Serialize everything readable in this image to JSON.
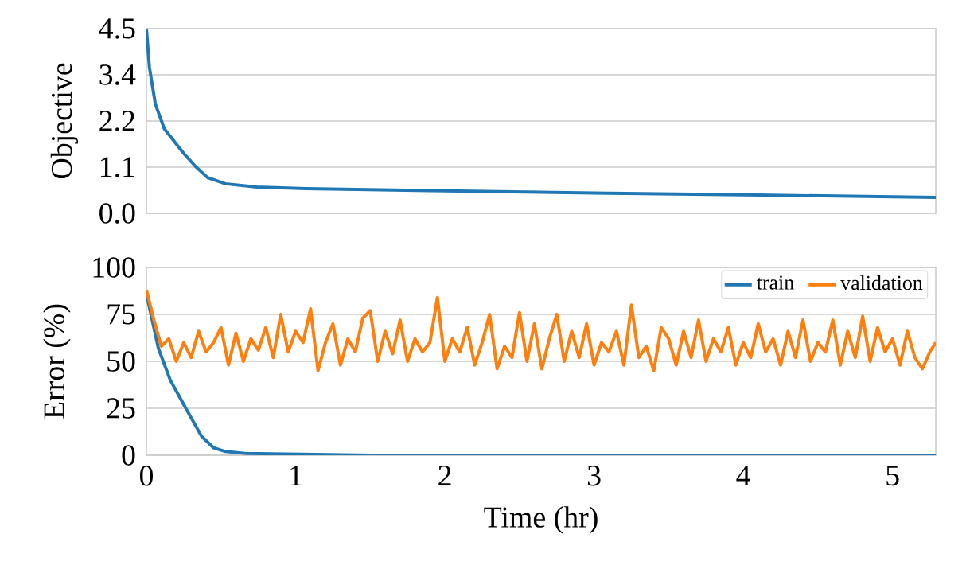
{
  "chart_data": [
    {
      "type": "line",
      "ylabel": "Objective",
      "xlim": [
        0,
        5.29
      ],
      "xticks": [
        0,
        1,
        2,
        3,
        4,
        5
      ],
      "ylim": [
        0,
        4.5
      ],
      "yticks": [
        {
          "value": 0,
          "label": "0.0"
        },
        {
          "value": 1.125,
          "label": "1.1"
        },
        {
          "value": 2.25,
          "label": "2.2"
        },
        {
          "value": 3.375,
          "label": "3.4"
        },
        {
          "value": 4.5,
          "label": "4.5"
        }
      ],
      "grid": "y",
      "tick_labels": "y",
      "series": [
        {
          "color": "#1f77b4",
          "x": [
            0,
            0.02,
            0.06,
            0.12,
            0.25,
            0.33,
            0.41,
            0.53,
            0.74,
            1.07,
            2.0,
            3.1,
            4.0,
            5.29
          ],
          "values": [
            4.5,
            3.56,
            2.66,
            2.06,
            1.46,
            1.14,
            0.87,
            0.72,
            0.64,
            0.6,
            0.55,
            0.49,
            0.45,
            0.39
          ]
        }
      ]
    },
    {
      "type": "line",
      "xlabel": "Time (hr)",
      "ylabel": "Error (%)",
      "xlim": [
        0,
        5.29
      ],
      "xticks": [
        0,
        1,
        2,
        3,
        4,
        5
      ],
      "ylim": [
        0,
        100
      ],
      "yticks": [
        0,
        25,
        50,
        75,
        100
      ],
      "grid": "y",
      "legend": "top right",
      "series": [
        {
          "name": "train",
          "color": "#1f77b4",
          "x": [
            0,
            0.08,
            0.16,
            0.25,
            0.37,
            0.45,
            0.53,
            0.66,
            1.5,
            3.0,
            4.5,
            5.29
          ],
          "values": [
            86,
            57,
            40,
            27,
            10,
            4,
            2,
            1,
            0,
            0,
            0,
            0
          ]
        },
        {
          "name": "validation",
          "color": "#ff7f0e",
          "x": [
            0,
            0.05,
            0.1,
            0.15,
            0.2,
            0.25,
            0.3,
            0.35,
            0.4,
            0.45,
            0.5,
            0.55,
            0.6,
            0.65,
            0.7,
            0.75,
            0.8,
            0.85,
            0.9,
            0.95,
            1.0,
            1.05,
            1.1,
            1.15,
            1.2,
            1.25,
            1.3,
            1.35,
            1.4,
            1.45,
            1.5,
            1.55,
            1.6,
            1.65,
            1.7,
            1.75,
            1.8,
            1.85,
            1.9,
            1.95,
            2.0,
            2.05,
            2.1,
            2.15,
            2.2,
            2.25,
            2.3,
            2.35,
            2.4,
            2.45,
            2.5,
            2.55,
            2.6,
            2.65,
            2.7,
            2.75,
            2.8,
            2.85,
            2.9,
            2.95,
            3.0,
            3.05,
            3.1,
            3.15,
            3.2,
            3.25,
            3.3,
            3.35,
            3.4,
            3.45,
            3.5,
            3.55,
            3.6,
            3.65,
            3.7,
            3.75,
            3.8,
            3.85,
            3.9,
            3.95,
            4.0,
            4.05,
            4.1,
            4.15,
            4.2,
            4.25,
            4.3,
            4.35,
            4.4,
            4.45,
            4.5,
            4.55,
            4.6,
            4.65,
            4.7,
            4.75,
            4.8,
            4.85,
            4.9,
            4.95,
            5.0,
            5.05,
            5.1,
            5.15,
            5.2,
            5.25,
            5.29
          ],
          "values": [
            88,
            72,
            58,
            62,
            50,
            60,
            52,
            66,
            55,
            60,
            68,
            48,
            65,
            50,
            62,
            56,
            68,
            52,
            75,
            55,
            66,
            60,
            78,
            45,
            60,
            70,
            48,
            62,
            55,
            73,
            77,
            50,
            66,
            54,
            72,
            50,
            62,
            55,
            60,
            84,
            50,
            62,
            55,
            68,
            48,
            60,
            75,
            46,
            58,
            52,
            76,
            50,
            70,
            46,
            62,
            75,
            50,
            66,
            52,
            70,
            48,
            60,
            55,
            66,
            48,
            80,
            52,
            58,
            45,
            68,
            62,
            48,
            66,
            52,
            72,
            50,
            62,
            55,
            68,
            48,
            60,
            52,
            70,
            55,
            62,
            48,
            66,
            52,
            72,
            50,
            60,
            55,
            72,
            48,
            66,
            52,
            74,
            50,
            68,
            55,
            62,
            48,
            66,
            52,
            46,
            55,
            60
          ]
        }
      ]
    }
  ]
}
